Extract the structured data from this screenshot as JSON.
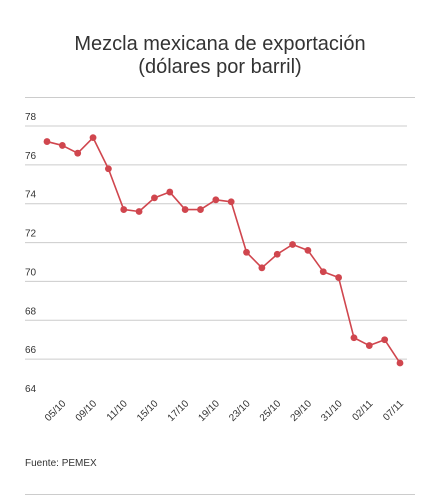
{
  "title_line1": "Mezcla mexicana de exportación",
  "title_line2": "(dólares por barril)",
  "source": "Fuente: PEMEX",
  "chart_data": {
    "type": "line",
    "title": "Mezcla mexicana de exportación (dólares por barril)",
    "xlabel": "",
    "ylabel": "",
    "ylim": [
      64,
      78
    ],
    "yticks": [
      64,
      66,
      68,
      70,
      72,
      74,
      76,
      78
    ],
    "grid": true,
    "color": "#d0464e",
    "x_tick_labels": [
      "05/10",
      "09/10",
      "11/10",
      "15/10",
      "17/10",
      "19/10",
      "23/10",
      "25/10",
      "29/10",
      "31/10",
      "02/11",
      "07/11"
    ],
    "series": [
      {
        "values": [
          77.2,
          77.0,
          76.6,
          77.4,
          75.8,
          73.7,
          73.6,
          74.3,
          74.6,
          73.7,
          73.7,
          74.2,
          74.1,
          71.5,
          70.7,
          71.4,
          71.9,
          71.6,
          70.5,
          70.2,
          67.1,
          66.7,
          67.0,
          65.8
        ]
      }
    ]
  }
}
